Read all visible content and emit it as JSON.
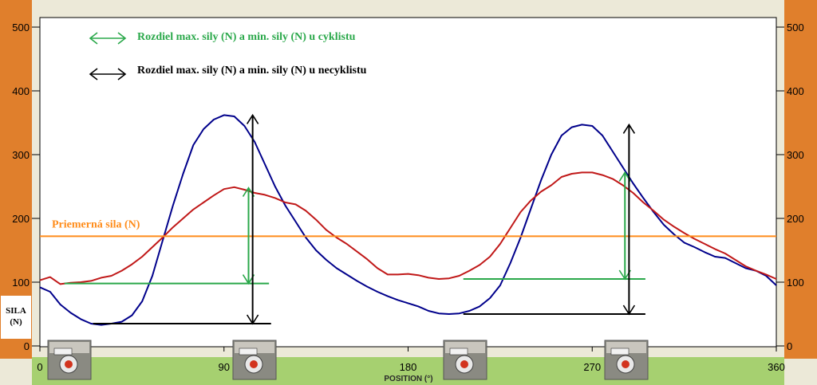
{
  "chart_data": {
    "type": "line",
    "xlabel": "POSITION (°)",
    "ylabel": "SILA (N)",
    "xlim": [
      0,
      360
    ],
    "ylim": [
      0,
      500
    ],
    "x_ticks": [
      "0",
      "90",
      "180",
      "270",
      "360"
    ],
    "y_ticks": [
      "0",
      "100",
      "200",
      "300",
      "400",
      "500"
    ],
    "grid": false,
    "legend": [
      {
        "label": "Rozdiel max. sily (N) a min. sily (N) u cyklistu",
        "color": "#2aa84a",
        "symbol": "double-arrow"
      },
      {
        "label": "Rozdiel max. sily (N) a min. sily (N) u necyklistu",
        "color": "#000000",
        "symbol": "double-arrow"
      }
    ],
    "average_line": {
      "label": "Priemerná sila (N)",
      "value": 172,
      "color": "#ff8c1a"
    },
    "series": [
      {
        "color": "#00008b",
        "x": [
          0,
          5,
          10,
          15,
          20,
          25,
          30,
          35,
          40,
          45,
          50,
          55,
          60,
          65,
          70,
          75,
          80,
          85,
          90,
          95,
          100,
          105,
          110,
          115,
          120,
          125,
          130,
          135,
          140,
          145,
          150,
          155,
          160,
          165,
          170,
          175,
          180,
          185,
          190,
          195,
          200,
          205,
          210,
          215,
          220,
          225,
          230,
          235,
          240,
          245,
          250,
          255,
          260,
          265,
          270,
          275,
          280,
          285,
          290,
          295,
          300,
          305,
          310,
          315,
          320,
          325,
          330,
          335,
          340,
          345,
          350,
          355,
          360
        ],
        "y": [
          92,
          85,
          65,
          52,
          42,
          35,
          33,
          35,
          38,
          48,
          70,
          110,
          165,
          220,
          270,
          315,
          340,
          355,
          362,
          360,
          345,
          320,
          285,
          250,
          220,
          195,
          170,
          150,
          135,
          122,
          112,
          102,
          93,
          85,
          78,
          72,
          67,
          62,
          55,
          51,
          50,
          51,
          55,
          62,
          75,
          95,
          130,
          170,
          215,
          260,
          300,
          330,
          343,
          347,
          345,
          330,
          305,
          280,
          255,
          232,
          210,
          190,
          175,
          162,
          155,
          147,
          140,
          138,
          130,
          122,
          118,
          110,
          95
        ]
      },
      {
        "color": "#c01818",
        "x": [
          0,
          5,
          10,
          15,
          20,
          25,
          30,
          35,
          40,
          45,
          50,
          55,
          60,
          65,
          70,
          75,
          80,
          85,
          90,
          95,
          100,
          105,
          110,
          115,
          120,
          125,
          130,
          135,
          140,
          145,
          150,
          155,
          160,
          165,
          170,
          175,
          180,
          185,
          190,
          195,
          200,
          205,
          210,
          215,
          220,
          225,
          230,
          235,
          240,
          245,
          250,
          255,
          260,
          265,
          270,
          275,
          280,
          285,
          290,
          295,
          300,
          305,
          310,
          315,
          320,
          325,
          330,
          335,
          340,
          345,
          350,
          355,
          360
        ],
        "y": [
          103,
          108,
          97,
          99,
          100,
          102,
          107,
          110,
          118,
          128,
          140,
          155,
          170,
          186,
          200,
          214,
          225,
          236,
          246,
          249,
          245,
          240,
          237,
          232,
          225,
          222,
          212,
          198,
          182,
          170,
          160,
          148,
          136,
          122,
          112,
          112,
          113,
          111,
          107,
          105,
          106,
          110,
          118,
          127,
          140,
          160,
          185,
          210,
          228,
          242,
          252,
          265,
          270,
          272,
          272,
          268,
          262,
          252,
          240,
          225,
          212,
          198,
          187,
          177,
          168,
          160,
          152,
          145,
          135,
          125,
          118,
          112,
          105
        ]
      }
    ],
    "annotations": [
      {
        "kind": "green-min-line",
        "x1": 12,
        "x2": 112,
        "y": 98,
        "color": "#2aa84a"
      },
      {
        "kind": "green-range-arrow",
        "x": 102,
        "y1": 98,
        "y2": 248,
        "color": "#2aa84a"
      },
      {
        "kind": "black-min-line",
        "x1": 26,
        "x2": 113,
        "y": 35,
        "color": "#000000"
      },
      {
        "kind": "black-range-arrow",
        "x": 104,
        "y1": 35,
        "y2": 362,
        "color": "#000000"
      },
      {
        "kind": "green-min-line",
        "x1": 207,
        "x2": 296,
        "y": 105,
        "color": "#2aa84a"
      },
      {
        "kind": "green-range-arrow",
        "x": 286,
        "y1": 105,
        "y2": 272,
        "color": "#2aa84a"
      },
      {
        "kind": "black-min-line",
        "x1": 207,
        "x2": 296,
        "y": 50,
        "color": "#000000"
      },
      {
        "kind": "black-range-arrow",
        "x": 288,
        "y1": 50,
        "y2": 347,
        "color": "#000000"
      }
    ]
  },
  "photo_icons": [
    "bike-pedal-photo-icon",
    "bike-pedal-photo-icon",
    "bike-pedal-photo-icon",
    "bike-pedal-photo-icon"
  ],
  "colors": {
    "left_panel": "#e07f2c",
    "bottom_bar": "#a6d070",
    "plot_bg": "#ffffff"
  }
}
